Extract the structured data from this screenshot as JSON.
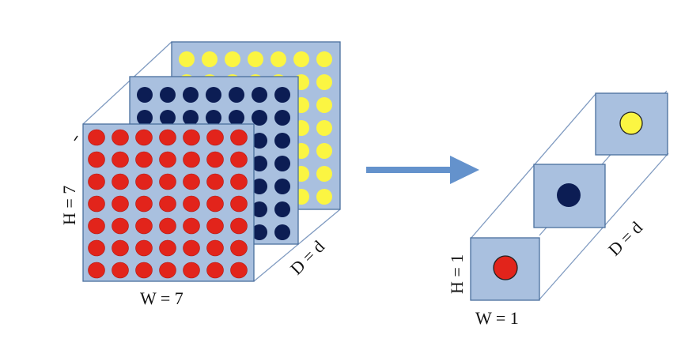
{
  "labels": {
    "left_h": "H = 7",
    "left_w": "W = 7",
    "left_d": "D = d",
    "right_h": "H = 1",
    "right_w": "W = 1",
    "right_d": "D = d"
  },
  "grid": {
    "rows": 7,
    "cols": 7
  },
  "colors": {
    "panel_fill": "#a9c0df",
    "panel_stroke": "#4a6f9e",
    "edge": "#7f9ac0",
    "red": "#e2241b",
    "navy": "#0c1d54",
    "yellow": "#fbf542",
    "arrow": "#6492cc"
  }
}
